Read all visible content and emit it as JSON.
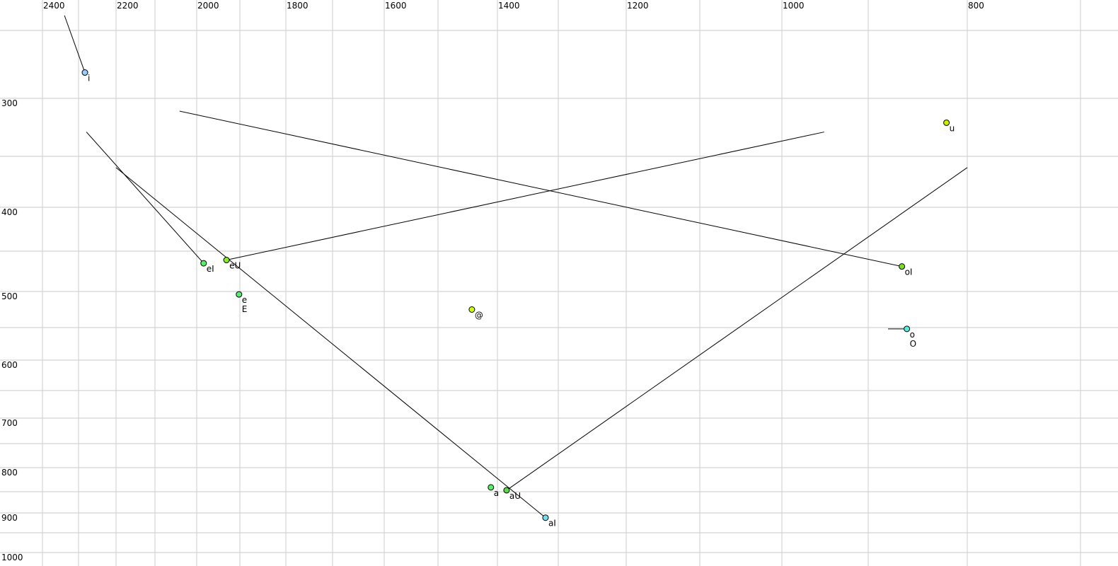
{
  "chart_data": {
    "type": "scatter",
    "title": "",
    "xlabel": "",
    "ylabel": "",
    "x_axis_reversed": true,
    "y_axis_reversed": true,
    "xlim": [
      2450,
      650
    ],
    "ylim": [
      230,
      1010
    ],
    "grid": true,
    "x_ticks": [
      2400,
      2200,
      2000,
      1800,
      1600,
      1400,
      1200,
      1000,
      800
    ],
    "y_ticks": [
      300,
      400,
      500,
      600,
      700,
      800,
      900,
      1000
    ],
    "points": [
      {
        "label": "i",
        "label2": "",
        "f2": 2283,
        "f1": 281,
        "color": "#99ccff",
        "trail_from": {
          "f2": 2339,
          "f1": 239
        }
      },
      {
        "label": "u",
        "label2": "",
        "f2": 821,
        "f1": 321,
        "color": "#ccee00"
      },
      {
        "label": "eI",
        "label2": "",
        "f2": 1984,
        "f1": 465,
        "color": "#55ee66",
        "trail_from": {
          "f2": 2279,
          "f1": 329
        }
      },
      {
        "label": "eU",
        "label2": "",
        "f2": 1931,
        "f1": 461,
        "color": "#88ee22",
        "trail_to": {
          "f2": 951,
          "f1": 329
        }
      },
      {
        "label": "e",
        "label2": "E",
        "f2": 1902,
        "f1": 504,
        "color": "#55ee77"
      },
      {
        "label": "@",
        "label2": "",
        "f2": 1443,
        "f1": 525,
        "color": "#ccff11"
      },
      {
        "label": "oI",
        "label2": "",
        "f2": 866,
        "f1": 469,
        "color": "#77dd22",
        "trail_from": {
          "f2": 2041,
          "f1": 311
        }
      },
      {
        "label": "o",
        "label2": "O",
        "f2": 861,
        "f1": 552,
        "color": "#55eedd",
        "trail_from": {
          "f2": 880,
          "f1": 552
        }
      },
      {
        "label": "a",
        "label2": "",
        "f2": 1411,
        "f1": 841,
        "color": "#55ee66"
      },
      {
        "label": "aU",
        "label2": "",
        "f2": 1385,
        "f1": 847,
        "color": "#55dd44",
        "trail_to": {
          "f2": 800,
          "f1": 361
        }
      },
      {
        "label": "aI",
        "label2": "",
        "f2": 1321,
        "f1": 912,
        "color": "#77ddee",
        "trail_from": {
          "f2": 2200,
          "f1": 361
        }
      }
    ]
  }
}
